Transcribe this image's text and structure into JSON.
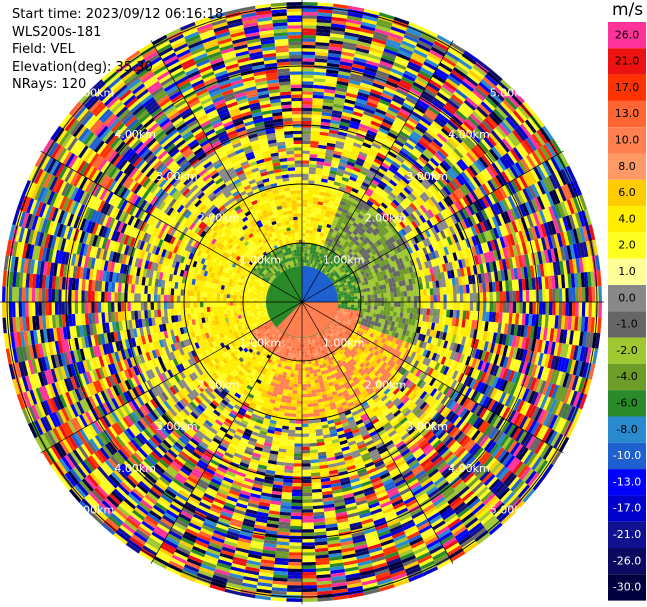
{
  "info": {
    "start_time": "Start time: 2023/09/12 06:16:18",
    "site": "WLS200s-181",
    "field": "Field: VEL",
    "elevation": "Elevation(deg): 35.30",
    "nrays": "NRays: 120"
  },
  "colorbar": {
    "unit": "m/s",
    "levels": [
      {
        "label": "26.0",
        "color": "#ff3399"
      },
      {
        "label": "21.0",
        "color": "#ee1111"
      },
      {
        "label": "17.0",
        "color": "#ff3300"
      },
      {
        "label": "13.0",
        "color": "#ff6633"
      },
      {
        "label": "10.0",
        "color": "#ff7f50"
      },
      {
        "label": "8.0",
        "color": "#ff9966"
      },
      {
        "label": "6.0",
        "color": "#ffcc00"
      },
      {
        "label": "4.0",
        "color": "#ffee00"
      },
      {
        "label": "2.0",
        "color": "#ffff22"
      },
      {
        "label": "1.0",
        "color": "#ffff99"
      },
      {
        "label": "0.0",
        "color": "#888888"
      },
      {
        "label": "-1.0",
        "color": "#666666"
      },
      {
        "label": "-2.0",
        "color": "#a0c830"
      },
      {
        "label": "-4.0",
        "color": "#6e9c28"
      },
      {
        "label": "-6.0",
        "color": "#2a8a2a"
      },
      {
        "label": "-8.0",
        "color": "#2a8ad0"
      },
      {
        "label": "-10.0",
        "color": "#1e60d0"
      },
      {
        "label": "-13.0",
        "color": "#0000ff"
      },
      {
        "label": "-17.0",
        "color": "#0000cc"
      },
      {
        "label": "-21.0",
        "color": "#101090"
      },
      {
        "label": "-26.0",
        "color": "#0a0a60"
      },
      {
        "label": "-30.0",
        "color": "#000040"
      }
    ]
  },
  "rings": {
    "labels": [
      "1.00km",
      "2.00km",
      "3.00km",
      "4.00km",
      "5.00km"
    ]
  },
  "chart_data": {
    "type": "heatmap",
    "title": "",
    "projection": "polar PPI",
    "rings_km": [
      1,
      2,
      3,
      4,
      5
    ],
    "range_km": [
      0,
      5.2
    ],
    "n_rays": 120,
    "vel_range": [
      -30,
      26
    ],
    "regions": [
      {
        "name": "near-range SE (positive)",
        "typical_value": 13.0
      },
      {
        "name": "near-range N/NE (negative)",
        "typical_value": -6.0
      },
      {
        "name": "mid-range ring",
        "typical_value": 2.0
      },
      {
        "name": "far-range (noisy)",
        "typical_value": "mixed"
      }
    ]
  }
}
